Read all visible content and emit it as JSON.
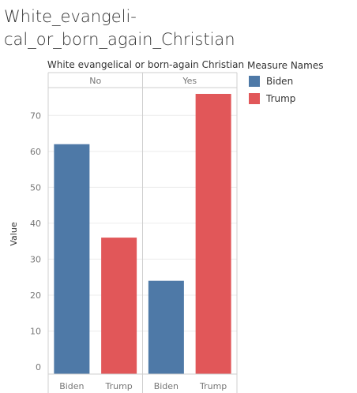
{
  "title_lines": [
    "White_evangeli-",
    "cal_or_born_again_Christian"
  ],
  "colors": {
    "Biden": "#4e79a7",
    "Trump": "#e15759",
    "gridline": "#ececec",
    "divider": "#cfcfcf",
    "text": "#333333",
    "tick": "#777777"
  },
  "legend": {
    "title": "Measure Names",
    "items": [
      {
        "label": "Biden",
        "color": "#4e79a7"
      },
      {
        "label": "Trump",
        "color": "#e15759"
      }
    ]
  },
  "chart_data": {
    "type": "bar",
    "title": "White evangelical or born-again Christian",
    "ylabel": "Value",
    "ylim": [
      0,
      78
    ],
    "yticks": [
      0,
      10,
      20,
      30,
      40,
      50,
      60,
      70
    ],
    "grid": true,
    "legend_position": "right",
    "panels": [
      {
        "label": "No",
        "bars": [
          {
            "category": "Biden",
            "value": 62
          },
          {
            "category": "Trump",
            "value": 36
          }
        ]
      },
      {
        "label": "Yes",
        "bars": [
          {
            "category": "Biden",
            "value": 24
          },
          {
            "category": "Trump",
            "value": 76
          }
        ]
      }
    ]
  }
}
